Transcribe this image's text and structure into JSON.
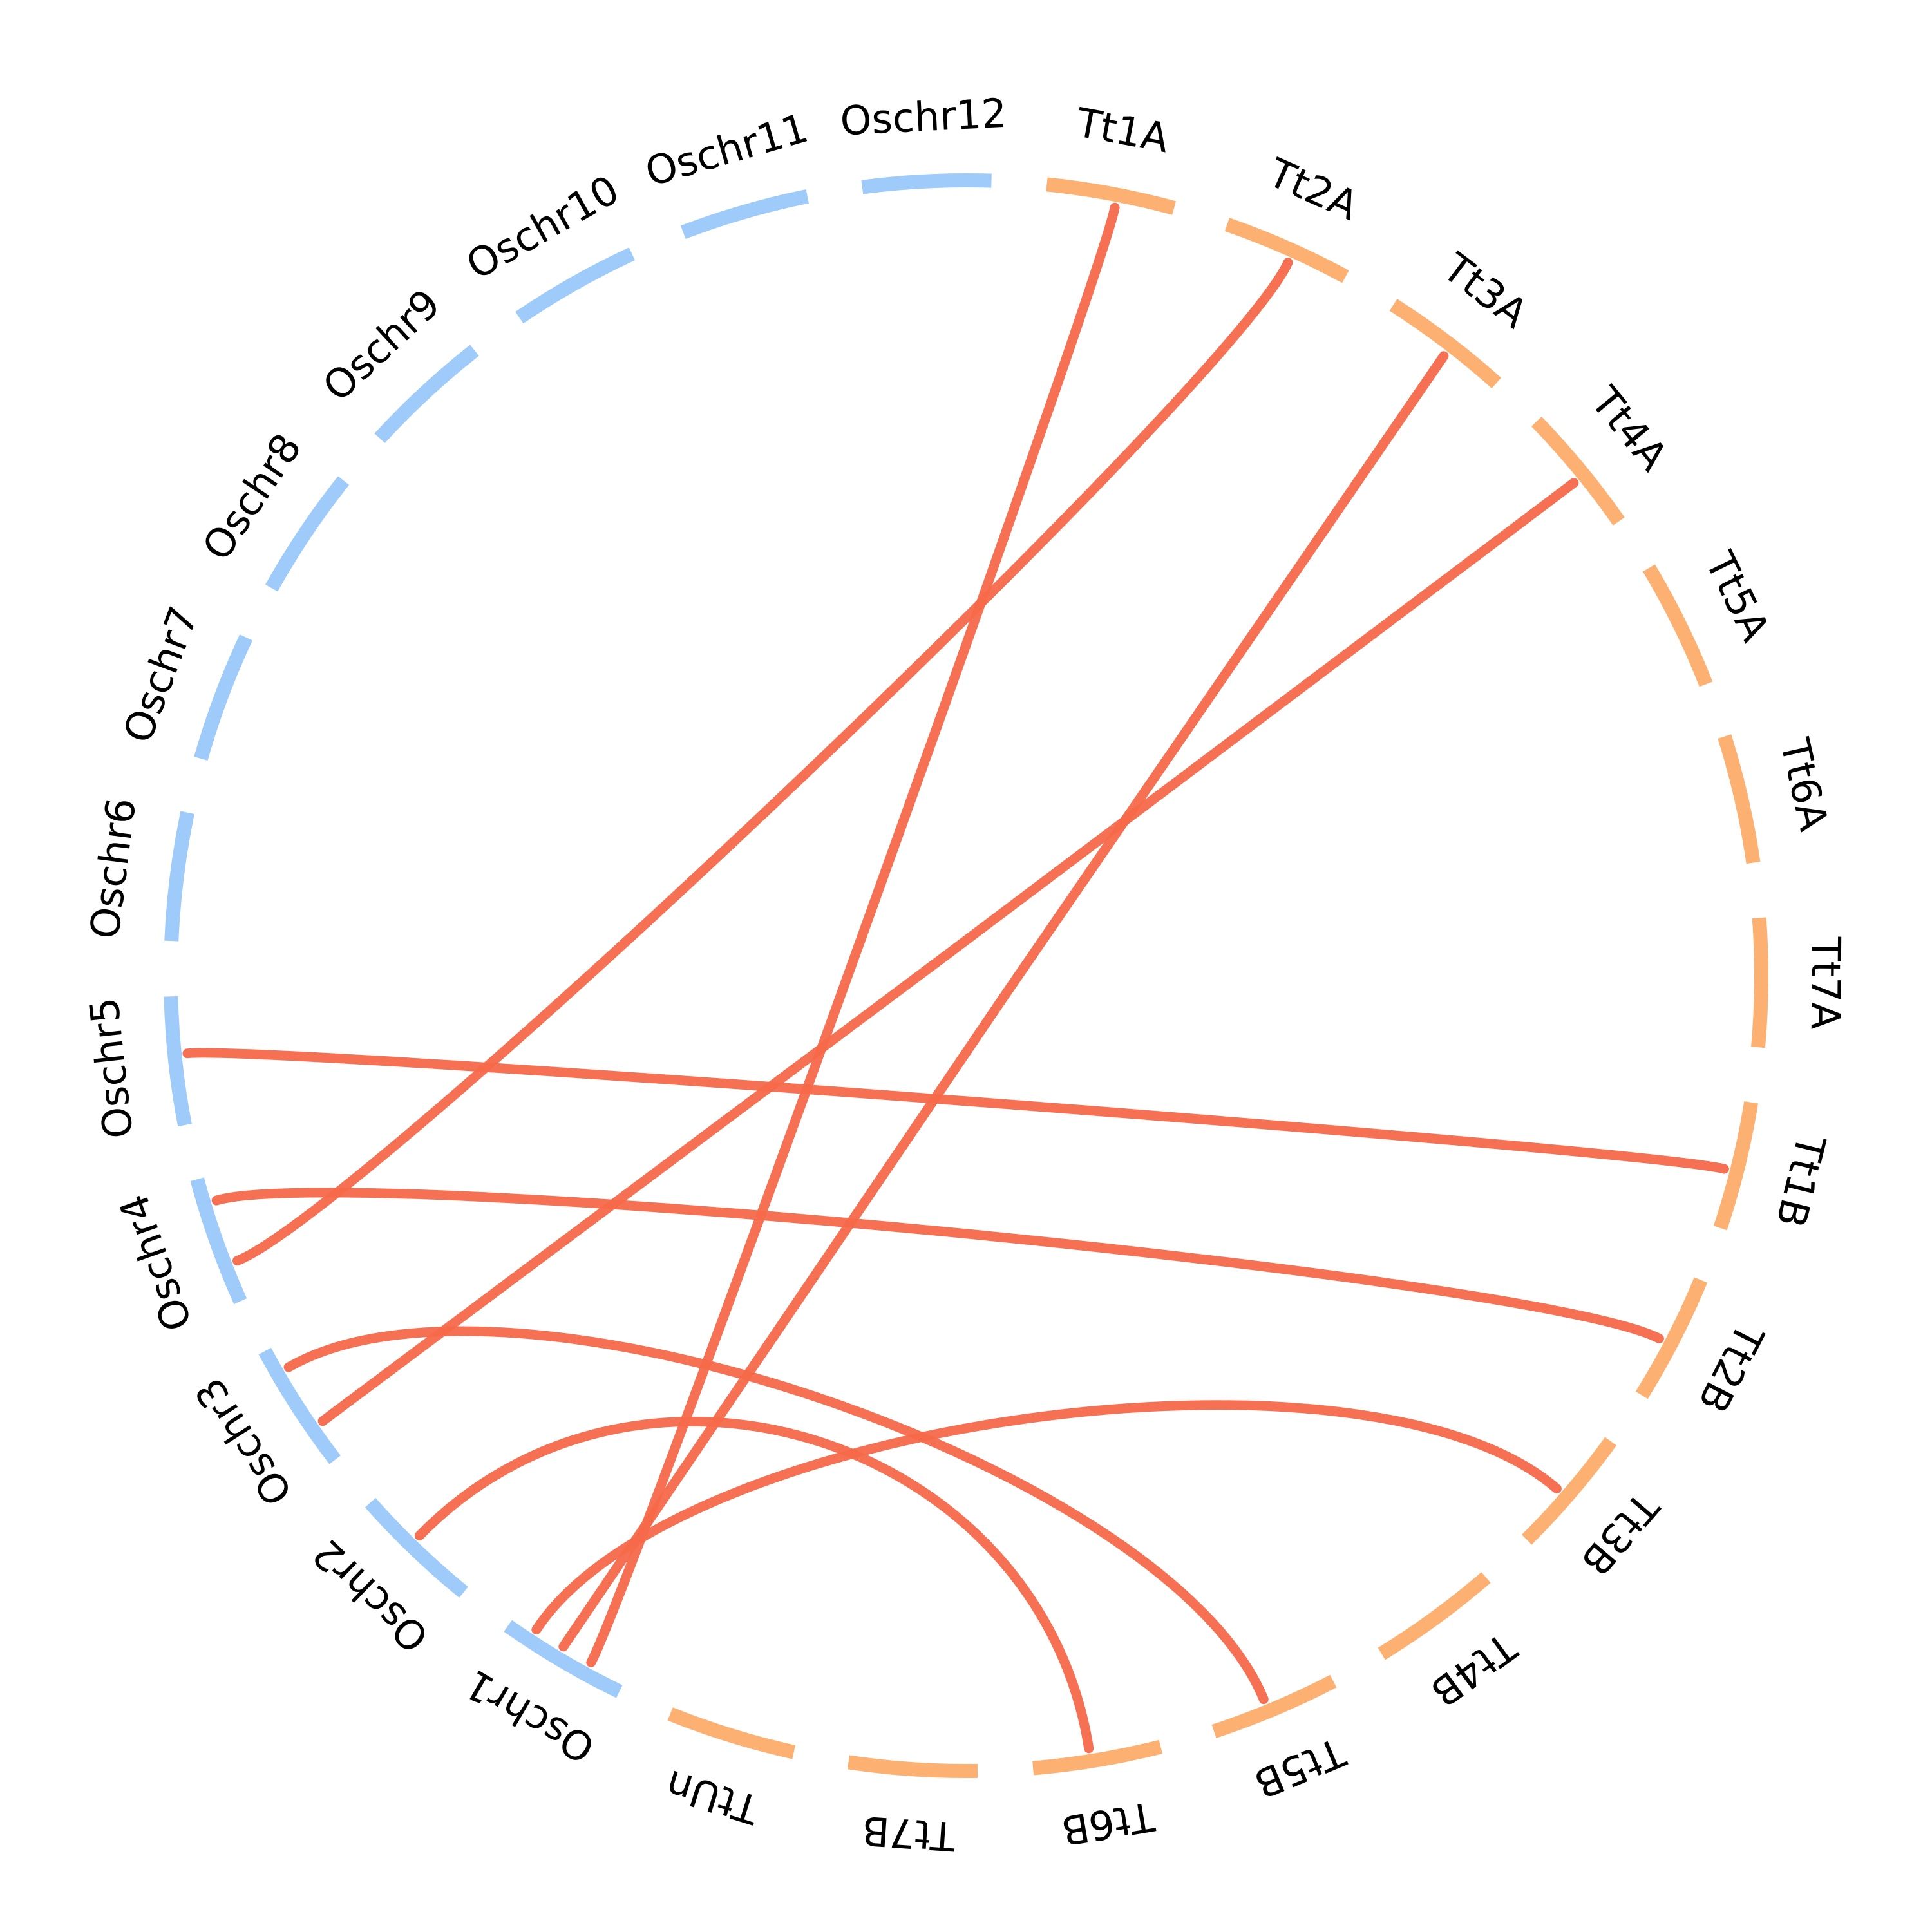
{
  "colors": {
    "rice": "#9ecbf9",
    "wheat": "#fcb172",
    "link": "#f5694a"
  },
  "chromosomes": [
    {
      "name": "Oschr12",
      "group": "rice"
    },
    {
      "name": "Tt1A",
      "group": "wheat"
    },
    {
      "name": "Tt2A",
      "group": "wheat"
    },
    {
      "name": "Tt3A",
      "group": "wheat"
    },
    {
      "name": "Tt4A",
      "group": "wheat"
    },
    {
      "name": "Tt5A",
      "group": "wheat"
    },
    {
      "name": "Tt6A",
      "group": "wheat"
    },
    {
      "name": "Tt7A",
      "group": "wheat"
    },
    {
      "name": "Tt1B",
      "group": "wheat"
    },
    {
      "name": "Tt2B",
      "group": "wheat"
    },
    {
      "name": "Tt3B",
      "group": "wheat"
    },
    {
      "name": "Tt4B",
      "group": "wheat"
    },
    {
      "name": "Tt5B",
      "group": "wheat"
    },
    {
      "name": "Tt6B",
      "group": "wheat"
    },
    {
      "name": "Tt7B",
      "group": "wheat"
    },
    {
      "name": "TtUn",
      "group": "wheat"
    },
    {
      "name": "Oschr1",
      "group": "rice"
    },
    {
      "name": "Oschr2",
      "group": "rice"
    },
    {
      "name": "Oschr3",
      "group": "rice"
    },
    {
      "name": "Oschr4",
      "group": "rice"
    },
    {
      "name": "Oschr5",
      "group": "rice"
    },
    {
      "name": "Oschr6",
      "group": "rice"
    },
    {
      "name": "Oschr7",
      "group": "rice"
    },
    {
      "name": "Oschr8",
      "group": "rice"
    },
    {
      "name": "Oschr9",
      "group": "rice"
    },
    {
      "name": "Oschr10",
      "group": "rice"
    },
    {
      "name": "Oschr11",
      "group": "rice"
    }
  ],
  "links": [
    {
      "from": "Tt1A",
      "to": "Oschr1"
    },
    {
      "from": "Tt2A",
      "to": "Oschr4"
    },
    {
      "from": "Tt3A",
      "to": "Oschr1"
    },
    {
      "from": "Tt4A",
      "to": "Oschr3"
    },
    {
      "from": "Tt1B",
      "to": "Oschr5"
    },
    {
      "from": "Tt2B",
      "to": "Oschr4"
    },
    {
      "from": "Tt3B",
      "to": "Oschr1"
    },
    {
      "from": "Tt5B",
      "to": "Oschr3"
    },
    {
      "from": "Tt6B",
      "to": "Oschr2"
    }
  ]
}
